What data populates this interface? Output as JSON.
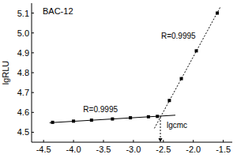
{
  "chart_data": {
    "type": "scatter",
    "title": "BAC-12",
    "y_label": "lgRLU",
    "xlim": [
      -4.7,
      -1.35
    ],
    "ylim": [
      4.45,
      5.15
    ],
    "xticks": [
      -4.5,
      {
        "value": -4,
        "label": "-4.0"
      },
      -3.5,
      {
        "value": -3,
        "label": "-3.0"
      },
      -2.5,
      {
        "value": -2,
        "label": "-2.0"
      },
      -1.5
    ],
    "yticks": [
      4.5,
      4.6,
      4.7,
      4.8,
      4.9,
      {
        "value": 5,
        "label": "5.0"
      },
      5.1
    ],
    "series": [
      {
        "type": "scatter",
        "marker": "square",
        "color": "#000000",
        "x": [
          -4.35,
          -4.0,
          -3.7,
          -3.35,
          -3.05,
          -2.75,
          -2.6,
          -2.4,
          -2.2,
          -1.95,
          -1.6
        ],
        "values": [
          4.55,
          4.556,
          4.561,
          4.567,
          4.573,
          4.578,
          4.58,
          4.66,
          4.77,
          4.91,
          5.1
        ]
      },
      {
        "type": "line",
        "line_style": "solid",
        "color": "#000000",
        "x": [
          -4.4,
          -2.3
        ],
        "values": [
          4.548,
          4.586
        ]
      },
      {
        "type": "line",
        "line_style": "dotted",
        "color": "#000000",
        "x": [
          -2.65,
          -1.55
        ],
        "values": [
          4.52,
          5.13
        ]
      }
    ],
    "annotations": [
      {
        "text": "R=0.9995",
        "x": -2.25,
        "y": 4.97
      },
      {
        "text": "R=0.9995",
        "x": -3.55,
        "y": 4.6
      },
      {
        "text": "lgcmc",
        "x": -2.55,
        "y": 4.577
      }
    ]
  }
}
